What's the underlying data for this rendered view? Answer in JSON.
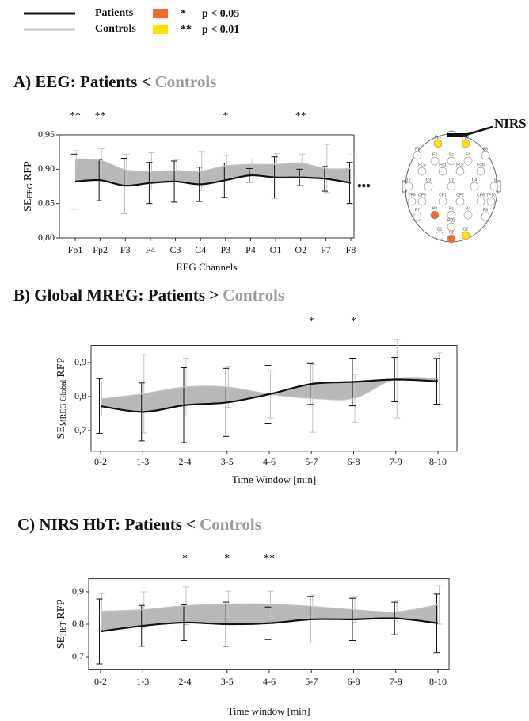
{
  "legend": {
    "items": [
      {
        "name": "Patients",
        "color": "#111111"
      },
      {
        "name": "Controls",
        "color": "#c4c4c4"
      }
    ],
    "significance": [
      {
        "symbol": "*",
        "label": "p < 0.05",
        "color": "#f26b2a"
      },
      {
        "symbol": "**",
        "label": "p < 0.01",
        "color": "#ffe000"
      }
    ]
  },
  "chart_data": [
    {
      "type": "line",
      "title": "A) EEG: Patients <",
      "title_highlight": "Controls",
      "x_label": "EEG Channels",
      "y_label": {
        "main": "SE",
        "sub": "EEG",
        "unit": "RFP"
      },
      "continuation": "•••",
      "categories": [
        "Fp1",
        "Fp2",
        "F3",
        "F4",
        "C3",
        "C4",
        "P3",
        "P4",
        "O1",
        "O2",
        "F7",
        "F8"
      ],
      "significance": [
        "**",
        "**",
        null,
        null,
        null,
        null,
        "*",
        null,
        null,
        "**",
        null,
        null
      ],
      "star_color": "#5a2020",
      "series": [
        {
          "color": "#c4c4c4",
          "values": [
            0.915,
            0.913,
            0.899,
            0.897,
            0.898,
            0.897,
            0.905,
            0.907,
            0.907,
            0.909,
            0.901,
            0.901
          ],
          "errors": [
            0.012,
            0.017,
            0.023,
            0.027,
            0.016,
            0.028,
            0.015,
            0.008,
            0.016,
            0.013,
            0.035,
            0.02
          ]
        },
        {
          "color": "#111111",
          "values": [
            0.882,
            0.884,
            0.876,
            0.88,
            0.882,
            0.878,
            0.884,
            0.891,
            0.888,
            0.888,
            0.886,
            0.88
          ],
          "errors": [
            0.04,
            0.03,
            0.04,
            0.03,
            0.03,
            0.025,
            0.025,
            0.01,
            0.03,
            0.012,
            0.018,
            0.03
          ]
        }
      ],
      "area_color": "#b8b8b8",
      "ylim": [
        0.8,
        0.95
      ],
      "yticks": [
        {
          "value": 0.8,
          "label": "0,80"
        },
        {
          "value": 0.85,
          "label": "0,85"
        },
        {
          "value": 0.9,
          "label": "0,90"
        },
        {
          "value": 0.95,
          "label": "0,95"
        }
      ]
    },
    {
      "type": "line",
      "title": "B) Global MREG: Patients >",
      "title_highlight": "Controls",
      "x_label": "Time Window [min]",
      "y_label": {
        "main": "SE",
        "sub": "MREG Global",
        "unit": "RFP"
      },
      "categories": [
        "0-2",
        "1-3",
        "2-4",
        "3-5",
        "4-6",
        "5-7",
        "6-8",
        "7-9",
        "8-10"
      ],
      "significance": [
        null,
        null,
        null,
        null,
        null,
        "*",
        "*",
        null,
        null
      ],
      "star_color": "#2a3a5a",
      "series": [
        {
          "color": "#c4c4c4",
          "values": [
            0.793,
            0.808,
            0.828,
            0.828,
            0.807,
            0.795,
            0.795,
            0.852,
            0.853
          ],
          "errors": [
            0.05,
            0.115,
            0.085,
            0.06,
            0.07,
            0.1,
            0.07,
            0.115,
            0.075
          ]
        },
        {
          "color": "#111111",
          "values": [
            0.772,
            0.755,
            0.775,
            0.783,
            0.807,
            0.837,
            0.843,
            0.85,
            0.845
          ],
          "errors": [
            0.08,
            0.085,
            0.11,
            0.1,
            0.085,
            0.06,
            0.07,
            0.065,
            0.067
          ]
        }
      ],
      "area_color": "#b8b8b8",
      "ylim": [
        0.64,
        0.95
      ],
      "yticks": [
        {
          "value": 0.7,
          "label": "0,7"
        },
        {
          "value": 0.8,
          "label": "0,8"
        },
        {
          "value": 0.9,
          "label": "0,9"
        }
      ]
    },
    {
      "type": "line",
      "title": "C) NIRS HbT: Patients <",
      "title_highlight": "Controls",
      "x_label": "Time window [min]",
      "y_label": {
        "main": "SE",
        "sub": "HbT",
        "unit": "RFP"
      },
      "categories": [
        "0-2",
        "1-3",
        "2-4",
        "3-5",
        "4-6",
        "5-7",
        "6-8",
        "7-9",
        "8-10"
      ],
      "significance": [
        null,
        null,
        "*",
        "*",
        "**",
        null,
        null,
        null,
        null
      ],
      "star_color": "#111111",
      "series": [
        {
          "color": "#c4c4c4",
          "values": [
            0.84,
            0.845,
            0.857,
            0.862,
            0.862,
            0.855,
            0.845,
            0.838,
            0.86
          ],
          "errors": [
            0.055,
            0.055,
            0.058,
            0.04,
            0.04,
            0.035,
            0.04,
            0.035,
            0.06
          ]
        },
        {
          "color": "#111111",
          "values": [
            0.778,
            0.795,
            0.805,
            0.8,
            0.803,
            0.815,
            0.815,
            0.818,
            0.803
          ],
          "errors": [
            0.1,
            0.063,
            0.055,
            0.068,
            0.05,
            0.07,
            0.065,
            0.05,
            0.09
          ]
        }
      ],
      "area_color": "#b8b8b8",
      "ylim": [
        0.66,
        0.94
      ],
      "yticks": [
        {
          "value": 0.7,
          "label": "0,7"
        },
        {
          "value": 0.8,
          "label": "0,8"
        },
        {
          "value": 0.9,
          "label": "0,9"
        }
      ]
    }
  ],
  "montage": {
    "label": "NIRS",
    "electrodes": [
      {
        "name": "Fp1",
        "color": "#ffe000"
      },
      {
        "name": "Fp2",
        "color": "#ffe000"
      },
      {
        "name": "F7"
      },
      {
        "name": "F3"
      },
      {
        "name": "Fz"
      },
      {
        "name": "F4"
      },
      {
        "name": "F8"
      },
      {
        "name": "FC5"
      },
      {
        "name": "FC1"
      },
      {
        "name": "FC2"
      },
      {
        "name": "FC6"
      },
      {
        "name": "T7"
      },
      {
        "name": "C3"
      },
      {
        "name": "Cz"
      },
      {
        "name": "C4"
      },
      {
        "name": "T8"
      },
      {
        "name": "TP9"
      },
      {
        "name": "CP5"
      },
      {
        "name": "CP1"
      },
      {
        "name": "CP2"
      },
      {
        "name": "CP6"
      },
      {
        "name": "TP10"
      },
      {
        "name": "P7"
      },
      {
        "name": "P3",
        "color": "#f26b2a"
      },
      {
        "name": "Pz"
      },
      {
        "name": "P4"
      },
      {
        "name": "P8"
      },
      {
        "name": "POz"
      },
      {
        "name": "O1"
      },
      {
        "name": "Oz",
        "color": "#f26b2a"
      },
      {
        "name": "O2",
        "color": "#ffe000"
      }
    ]
  }
}
